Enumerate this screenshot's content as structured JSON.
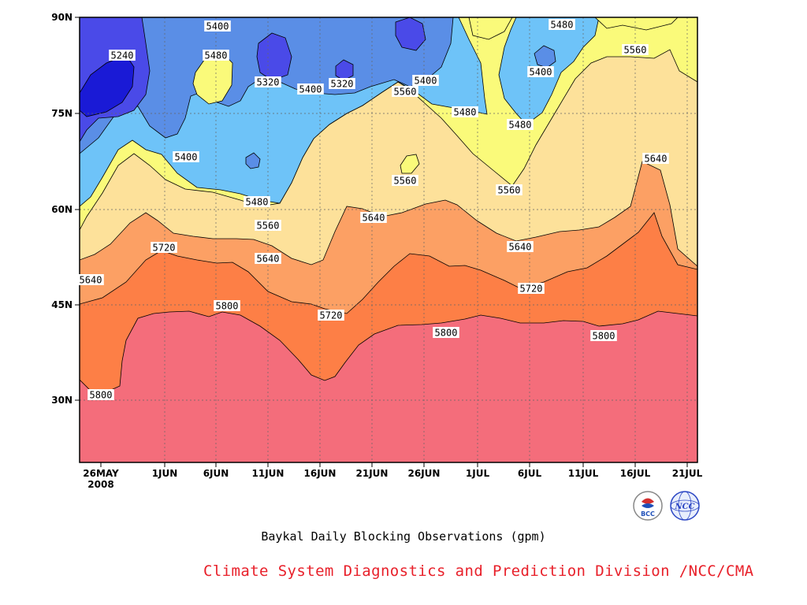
{
  "chart_data": {
    "type": "heatmap",
    "title": "",
    "caption": "Baykal Daily Blocking Observations (gpm)",
    "credit": "Climate System Diagnostics and Prediction Division /NCC/CMA",
    "xlabel": "",
    "ylabel": "",
    "x_ticks": [
      "26MAY",
      "1JUN",
      "6JUN",
      "11JUN",
      "16JUN",
      "21JUN",
      "26JUN",
      "1JUL",
      "6JUL",
      "11JUL",
      "16JUL",
      "21JUL"
    ],
    "x_year_label": "2008",
    "y_ticks": [
      "30N",
      "45N",
      "60N",
      "75N",
      "90N"
    ],
    "xlim": [
      "24MAY2008",
      "23JUL2008"
    ],
    "ylim": [
      20,
      90
    ],
    "grid": "dotted",
    "contour_levels": [
      5240,
      5320,
      5400,
      5480,
      5560,
      5640,
      5720,
      5800
    ],
    "fill_colors": {
      "below_5240": "#1a1ad6",
      "5240_5320": "#4a4ae8",
      "5320_5400": "#5a8ee6",
      "5400_5480": "#6ec3f8",
      "5480_5560": "#fafa7a",
      "5560_5640": "#fde19a",
      "5640_5720": "#fca064",
      "5720_5800": "#fd7f46",
      "above_5800": "#f46d7b"
    },
    "contour_labels": [
      "5240",
      "5400",
      "5480",
      "5320",
      "5400",
      "5320",
      "5400",
      "5560",
      "5480",
      "5480",
      "5400",
      "5480",
      "5560",
      "5400",
      "5560",
      "5560",
      "5640",
      "5480",
      "5560",
      "5640",
      "5720",
      "5640",
      "5640",
      "5640",
      "5800",
      "5720",
      "5720",
      "5800",
      "5800",
      "5800"
    ],
    "logos": [
      "BCC",
      "NCC"
    ]
  }
}
